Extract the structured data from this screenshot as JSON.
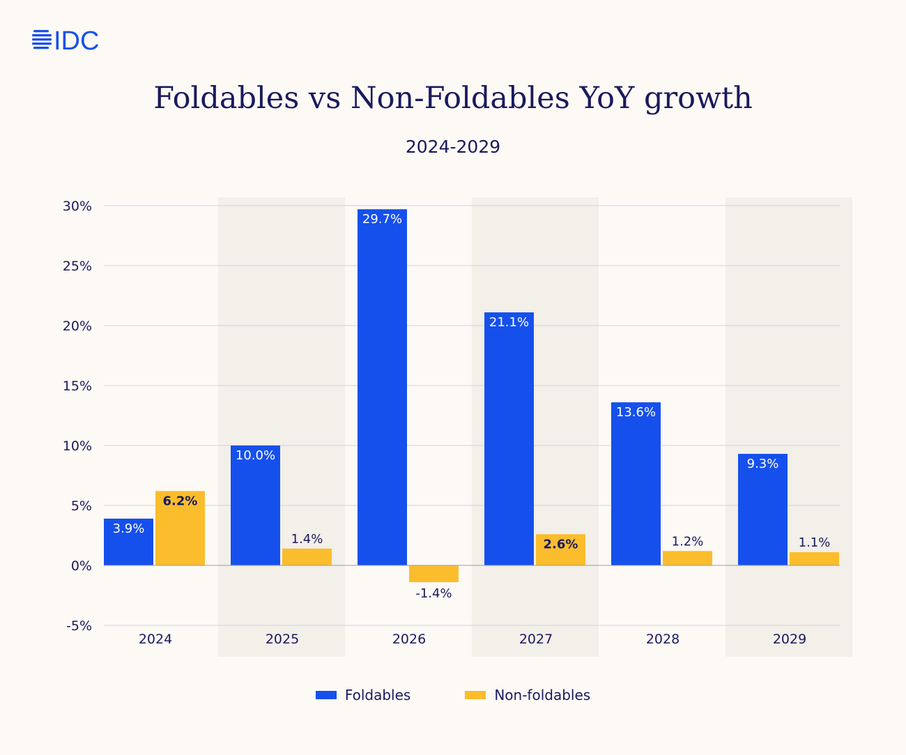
{
  "brand": {
    "logo_text": "IDC",
    "logo_color": "#1650ec"
  },
  "title": "Foldables vs Non-Foldables YoY growth",
  "subtitle": "2024-2029",
  "colors": {
    "foldables": "#1650ec",
    "non_foldables": "#fbbd2c",
    "band": "#f3efe9",
    "grid": "#d3d1e2",
    "text": "#1a1a5e"
  },
  "chart_data": {
    "type": "bar",
    "categories": [
      "2024",
      "2025",
      "2026",
      "2027",
      "2028",
      "2029"
    ],
    "series": [
      {
        "name": "Foldables",
        "values": [
          3.9,
          10.0,
          29.7,
          21.1,
          13.6,
          9.3
        ],
        "labels": [
          "3.9%",
          "10.0%",
          "29.7%",
          "21.1%",
          "13.6%",
          "9.3%"
        ]
      },
      {
        "name": "Non-foldables",
        "values": [
          6.2,
          1.4,
          -1.4,
          2.6,
          1.2,
          1.1
        ],
        "labels": [
          "6.2%",
          "1.4%",
          "-1.4%",
          "2.6%",
          "1.2%",
          "1.1%"
        ]
      }
    ],
    "ylim": [
      -5,
      30
    ],
    "yticks": [
      30,
      25,
      20,
      15,
      10,
      5,
      0,
      -5
    ],
    "ytick_labels": [
      "30%",
      "25%",
      "20%",
      "15%",
      "10%",
      "5%",
      "0%",
      "-5%"
    ],
    "grid": true,
    "shaded_categories": [
      "2025",
      "2027",
      "2029"
    ],
    "legend_placement": "bottom-center"
  }
}
